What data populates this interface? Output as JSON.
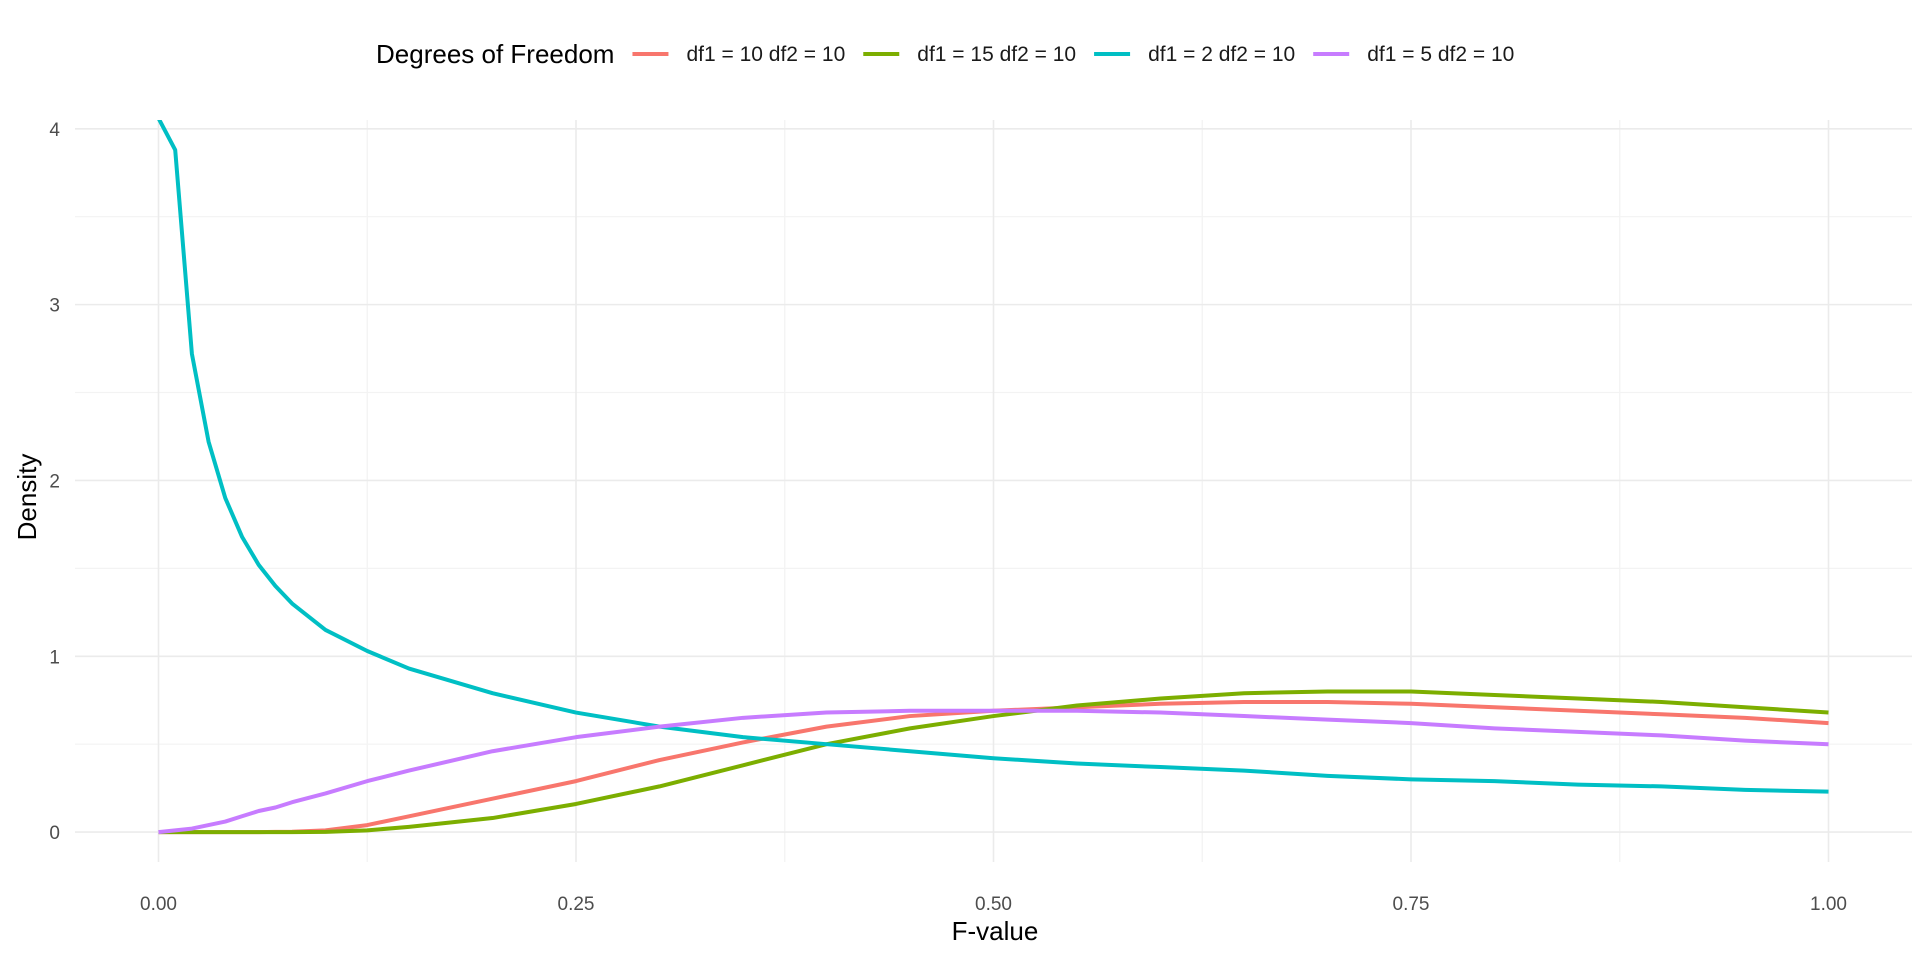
{
  "chart_data": {
    "type": "line",
    "title": "",
    "xlabel": "F-value",
    "ylabel": "Density",
    "xlim": [
      -0.05,
      1.05
    ],
    "ylim": [
      -0.17,
      4.05
    ],
    "x_ticks": [
      0,
      0.25,
      0.5,
      0.75,
      1
    ],
    "x_tick_labels": [
      "0.00",
      "0.25",
      "0.50",
      "0.75",
      "1.00"
    ],
    "x_minor_ticks": [
      0.125,
      0.375,
      0.625,
      0.875
    ],
    "y_ticks": [
      0,
      1,
      2,
      3,
      4
    ],
    "y_tick_labels": [
      "0",
      "1",
      "2",
      "3",
      "4"
    ],
    "y_minor_ticks": [
      0.5,
      1.5,
      2.5,
      3.5
    ],
    "grid": true,
    "legend": {
      "title": "Degrees of Freedom",
      "position": "top"
    },
    "x": [
      0,
      0.01,
      0.02,
      0.03,
      0.04,
      0.05,
      0.06,
      0.07,
      0.08,
      0.1,
      0.125,
      0.15,
      0.2,
      0.25,
      0.3,
      0.35,
      0.4,
      0.45,
      0.5,
      0.55,
      0.6,
      0.65,
      0.7,
      0.75,
      0.8,
      0.85,
      0.9,
      0.95,
      1.0
    ],
    "series": [
      {
        "name": "df1 = 10 df2 = 10",
        "color": "#F8766D",
        "values": [
          0,
          0,
          0,
          0,
          0,
          0,
          0,
          0.001,
          0.002,
          0.01,
          0.04,
          0.09,
          0.19,
          0.29,
          0.41,
          0.51,
          0.6,
          0.66,
          0.69,
          0.71,
          0.73,
          0.74,
          0.74,
          0.73,
          0.71,
          0.69,
          0.67,
          0.65,
          0.62
        ]
      },
      {
        "name": "df1 = 15 df2 = 10",
        "color": "#7CAE00",
        "values": [
          0,
          0,
          0,
          0,
          0,
          0,
          0,
          0,
          0,
          0.001,
          0.01,
          0.03,
          0.08,
          0.16,
          0.26,
          0.38,
          0.5,
          0.59,
          0.66,
          0.72,
          0.76,
          0.79,
          0.8,
          0.8,
          0.78,
          0.76,
          0.74,
          0.71,
          0.68
        ]
      },
      {
        "name": "df1 = 2 df2 = 10",
        "color": "#00BFC4",
        "values": [
          4.06,
          3.88,
          2.72,
          2.22,
          1.9,
          1.68,
          1.52,
          1.4,
          1.3,
          1.15,
          1.03,
          0.93,
          0.79,
          0.68,
          0.6,
          0.54,
          0.5,
          0.46,
          0.42,
          0.39,
          0.37,
          0.35,
          0.32,
          0.3,
          0.29,
          0.27,
          0.26,
          0.24,
          0.23
        ]
      },
      {
        "name": "df1 = 5 df2 = 10",
        "color": "#C77CFF",
        "values": [
          0,
          0.01,
          0.02,
          0.04,
          0.06,
          0.09,
          0.12,
          0.14,
          0.17,
          0.22,
          0.29,
          0.35,
          0.46,
          0.54,
          0.6,
          0.65,
          0.68,
          0.69,
          0.69,
          0.69,
          0.68,
          0.66,
          0.64,
          0.62,
          0.59,
          0.57,
          0.55,
          0.52,
          0.5
        ]
      }
    ]
  }
}
